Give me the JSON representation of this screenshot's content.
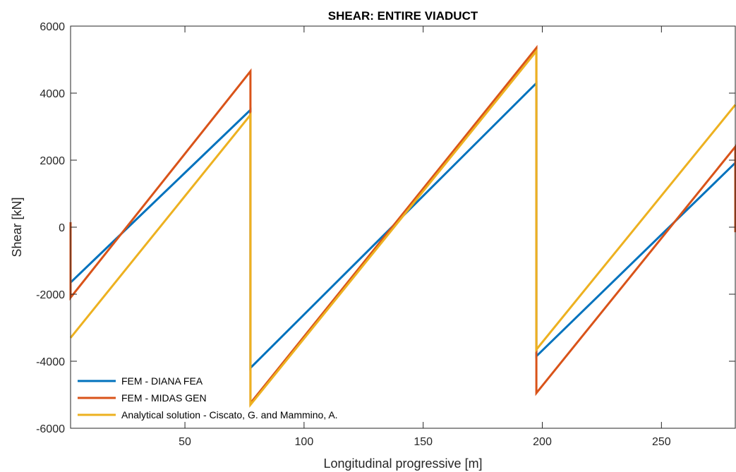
{
  "chart_data": {
    "type": "line",
    "title": "SHEAR: ENTIRE VIADUCT",
    "xlabel": "Longitudinal progressive [m]",
    "ylabel": "Shear [kN]",
    "xlim": [
      2,
      281
    ],
    "ylim": [
      -6000,
      6000
    ],
    "xticks": [
      50,
      100,
      150,
      200,
      250
    ],
    "yticks": [
      -6000,
      -4000,
      -2000,
      0,
      2000,
      4000,
      6000
    ],
    "grid": false,
    "legend_position": "bottom-left",
    "series": [
      {
        "name": "FEM - DIANA FEA",
        "color": "#0072BD",
        "points": [
          [
            2,
            -1650
          ],
          [
            77.5,
            3500
          ],
          [
            77.5,
            -4200
          ],
          [
            197.5,
            4300
          ],
          [
            197.5,
            -3850
          ],
          [
            281,
            1920
          ]
        ]
      },
      {
        "name": "FEM - MIDAS GEN",
        "color": "#D95319",
        "points": [
          [
            2,
            150
          ],
          [
            2,
            -2100
          ],
          [
            77.5,
            4650
          ],
          [
            77.5,
            -5250
          ],
          [
            197.5,
            5350
          ],
          [
            197.5,
            -4950
          ],
          [
            281,
            2400
          ],
          [
            281,
            -150
          ]
        ]
      },
      {
        "name": "Analytical solution - Ciscato, G. and Mammino, A.",
        "color": "#EDB120",
        "points": [
          [
            2,
            -3300
          ],
          [
            77.5,
            3350
          ],
          [
            77.5,
            -5300
          ],
          [
            197.5,
            5250
          ],
          [
            197.5,
            -3650
          ],
          [
            281,
            3650
          ]
        ]
      }
    ]
  }
}
